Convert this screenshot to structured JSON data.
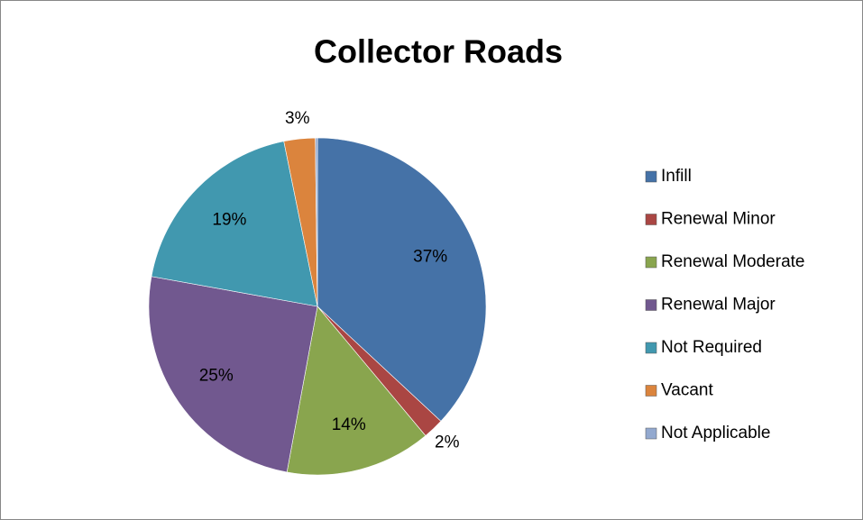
{
  "chart_data": {
    "type": "pie",
    "title": "Collector Roads",
    "categories": [
      "Infill",
      "Renewal Minor",
      "Renewal Moderate",
      "Renewal Major",
      "Not Required",
      "Vacant",
      "Not Applicable"
    ],
    "values": [
      37,
      2,
      14,
      25,
      19,
      3,
      0.2
    ],
    "value_labels": [
      "37%",
      "2%",
      "14%",
      "25%",
      "19%",
      "3%",
      null
    ],
    "colors": [
      "#4572a7",
      "#aa4643",
      "#89a54e",
      "#71588f",
      "#4198af",
      "#db843d",
      "#93a9cf"
    ],
    "legend": "right"
  }
}
